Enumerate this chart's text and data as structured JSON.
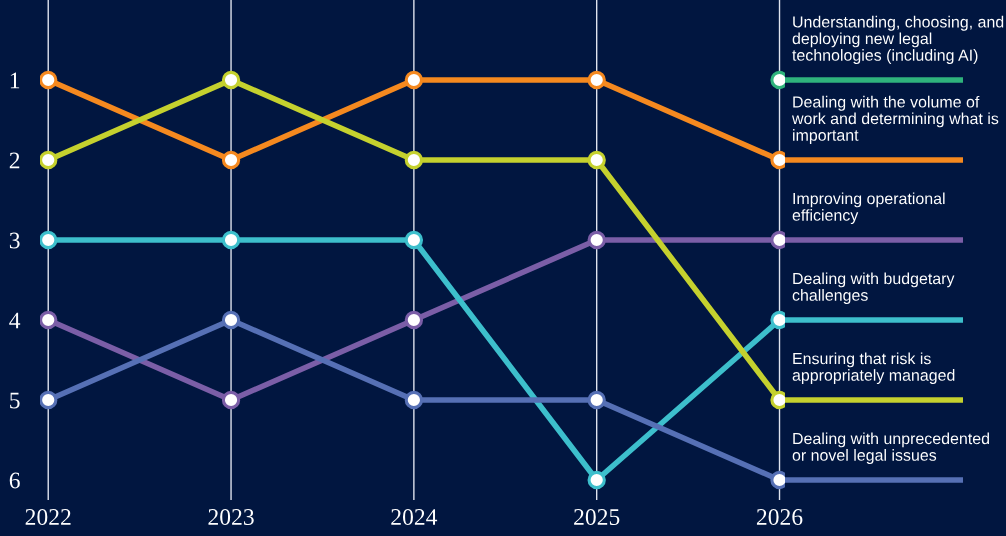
{
  "chart_data": {
    "type": "line",
    "categories": [
      "2022",
      "2023",
      "2024",
      "2025",
      "2026"
    ],
    "series": [
      {
        "name": "Understanding, choosing, and deploying new legal technologies (including AI)",
        "color": "#2fb37c",
        "values": [
          null,
          null,
          null,
          null,
          1
        ]
      },
      {
        "name": "Dealing with the volume of work and determining what is important",
        "color": "#f5891f",
        "values": [
          1,
          2,
          1,
          1,
          2
        ]
      },
      {
        "name": "Improving operational efficiency",
        "color": "#7b5ea7",
        "values": [
          4,
          5,
          4,
          3,
          3
        ]
      },
      {
        "name": "Dealing with budgetary challenges",
        "color": "#3dbfcc",
        "values": [
          3,
          3,
          3,
          6,
          4
        ]
      },
      {
        "name": "Ensuring that risk is appropriately managed",
        "color": "#c5d12e",
        "values": [
          2,
          1,
          2,
          2,
          5
        ]
      },
      {
        "name": "Dealing with unprecedented or novel legal issues",
        "color": "#5670b5",
        "values": [
          5,
          4,
          5,
          5,
          6
        ]
      }
    ],
    "ylim": [
      6.25,
      0
    ],
    "yticks": [
      1,
      2,
      3,
      4,
      5,
      6
    ],
    "grid": "x",
    "marker": "circle",
    "line_style": "solid",
    "legend": "right"
  }
}
